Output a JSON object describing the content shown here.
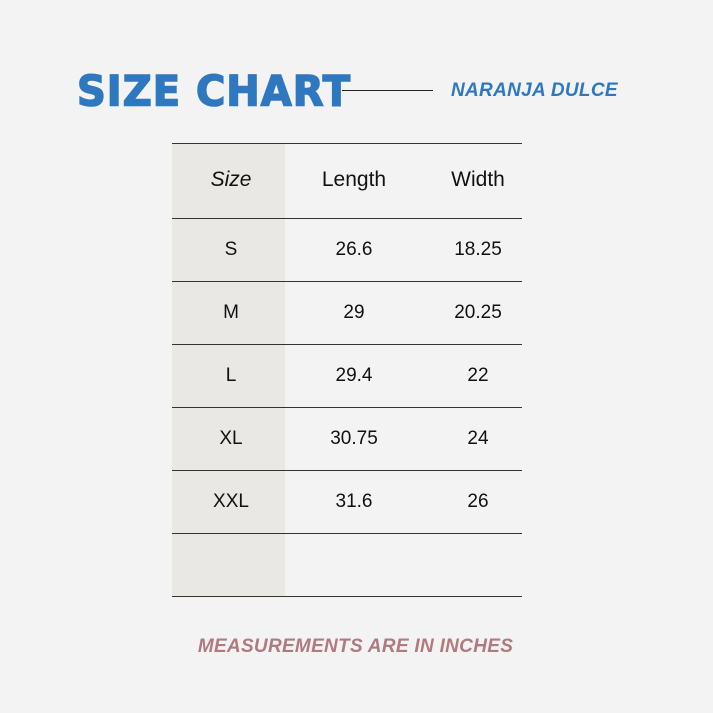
{
  "header": {
    "title": "SIZE CHART",
    "brand": "NARANJA DULCE"
  },
  "table": {
    "columns": [
      "Size",
      "Length",
      "Width"
    ],
    "rows": [
      [
        "S",
        "26.6",
        "18.25"
      ],
      [
        "M",
        "29",
        "20.25"
      ],
      [
        "L",
        "29.4",
        "22"
      ],
      [
        "XL",
        "30.75",
        "24"
      ],
      [
        "XXL",
        "31.6",
        "26"
      ],
      [
        "",
        "",
        ""
      ]
    ]
  },
  "footer": {
    "note": "MEASUREMENTS ARE IN INCHES"
  },
  "colors": {
    "accent": "#2f78c0",
    "footer": "#b07a7e",
    "background": "#f3f3f3",
    "size_column": "#e9e8e4"
  }
}
